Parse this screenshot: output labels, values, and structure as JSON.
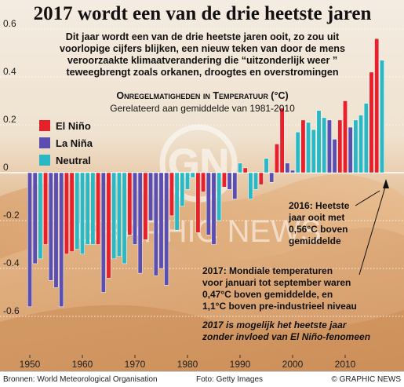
{
  "title": "2017 wordt een van de drie heetste jaren",
  "subtitle_lines": [
    "Dit jaar wordt een van de drie heetste jaren ooit, zo zou uit",
    "voorlopige cijfers blijken, een nieuw teken van door de mens",
    "veroorzaakte klimaatverandering die “uitzonderlijk weer ”",
    "teweegbrengt zoals orkanen, droogtes en overstromingen"
  ],
  "chart_title": "Onregelmatigheden in Temperatuur (°C)",
  "chart_subtitle": "Gerelateerd aan gemiddelde van 1981-2010",
  "annotations": {
    "a2016_lines": [
      "2016: Heetste",
      "jaar ooit met",
      "0,56°C boven",
      "gemiddelde"
    ],
    "a2017_lines": [
      "2017: Mondiale temperaturen",
      "voor januari tot september waren",
      "0,47°C boven gemiddelde, en",
      "1,1°C boven pre-industrieel niveau"
    ],
    "elnino_note_lines": [
      "2017 is mogelijk het heetste jaar",
      "zonder invloed van El Niño-fenomeen"
    ]
  },
  "footer": {
    "source": "Bronnen: World Meteorological Organisation",
    "photo": "Foto: Getty Images",
    "copyright": "© GRAPHIC NEWS"
  },
  "watermark": "GRAPHIC NEWS",
  "colors": {
    "el_nino": "#e8202a",
    "la_nina": "#5a4fb0",
    "neutral": "#2ab8c4",
    "background_sky": "#efe6da",
    "background_sand": "#d8a472"
  },
  "chart_data": {
    "type": "bar",
    "title": "Onregelmatigheden in Temperatuur (°C)",
    "subtitle": "Gerelateerd aan gemiddelde van 1981-2010",
    "xlim": [
      1950,
      2017
    ],
    "ylim": [
      -0.6,
      0.6
    ],
    "yticks": [
      0.6,
      0.4,
      0.2,
      0,
      -0.2,
      -0.4,
      -0.6
    ],
    "ytick_labels": [
      "0.6",
      "0.4",
      "0.2",
      "0",
      "-0.2",
      "-0.4",
      "-0.6"
    ],
    "xticks": [
      1950,
      1960,
      1970,
      1980,
      1990,
      2000,
      2010
    ],
    "legend": [
      {
        "key": "el_nino",
        "label": "El Niño"
      },
      {
        "key": "la_nina",
        "label": "La Niña"
      },
      {
        "key": "neutral",
        "label": "Neutral"
      }
    ],
    "legend_position": "top-left",
    "years": [
      1950,
      1951,
      1952,
      1953,
      1954,
      1955,
      1956,
      1957,
      1958,
      1959,
      1960,
      1961,
      1962,
      1963,
      1964,
      1965,
      1966,
      1967,
      1968,
      1969,
      1970,
      1971,
      1972,
      1973,
      1974,
      1975,
      1976,
      1977,
      1978,
      1979,
      1980,
      1981,
      1982,
      1983,
      1984,
      1985,
      1986,
      1987,
      1988,
      1989,
      1990,
      1991,
      1992,
      1993,
      1994,
      1995,
      1996,
      1997,
      1998,
      1999,
      2000,
      2001,
      2002,
      2003,
      2004,
      2005,
      2006,
      2007,
      2008,
      2009,
      2010,
      2011,
      2012,
      2013,
      2014,
      2015,
      2016,
      2017
    ],
    "values": [
      -0.56,
      -0.38,
      -0.36,
      -0.3,
      -0.45,
      -0.48,
      -0.56,
      -0.34,
      -0.33,
      -0.32,
      -0.34,
      -0.3,
      -0.3,
      -0.3,
      -0.5,
      -0.44,
      -0.36,
      -0.35,
      -0.38,
      -0.26,
      -0.3,
      -0.42,
      -0.28,
      -0.2,
      -0.43,
      -0.4,
      -0.47,
      -0.18,
      -0.24,
      -0.14,
      -0.07,
      -0.02,
      -0.25,
      -0.08,
      -0.26,
      -0.3,
      -0.2,
      -0.06,
      -0.07,
      -0.11,
      0.04,
      0.02,
      -0.11,
      -0.07,
      -0.05,
      0.06,
      -0.04,
      0.12,
      0.27,
      0.04,
      0.01,
      0.17,
      0.22,
      0.21,
      0.18,
      0.26,
      0.23,
      0.22,
      0.14,
      0.22,
      0.3,
      0.19,
      0.22,
      0.24,
      0.29,
      0.42,
      0.56,
      0.47
    ],
    "types": [
      "nina",
      "nina",
      "neu",
      "nino",
      "nina",
      "nina",
      "nina",
      "nino",
      "nino",
      "neu",
      "neu",
      "neu",
      "neu",
      "nino",
      "nina",
      "nino",
      "neu",
      "neu",
      "neu",
      "nino",
      "nina",
      "nina",
      "nino",
      "nina",
      "nina",
      "nina",
      "nina",
      "nino",
      "neu",
      "neu",
      "neu",
      "neu",
      "nino",
      "nino",
      "nina",
      "nina",
      "neu",
      "nino",
      "nina",
      "nina",
      "neu",
      "nino",
      "neu",
      "neu",
      "nino",
      "neu",
      "nina",
      "nino",
      "nino",
      "nina",
      "nina",
      "neu",
      "nino",
      "neu",
      "neu",
      "neu",
      "neu",
      "nina",
      "nina",
      "nino",
      "nino",
      "nina",
      "neu",
      "neu",
      "neu",
      "nino",
      "nino",
      "neu"
    ]
  }
}
